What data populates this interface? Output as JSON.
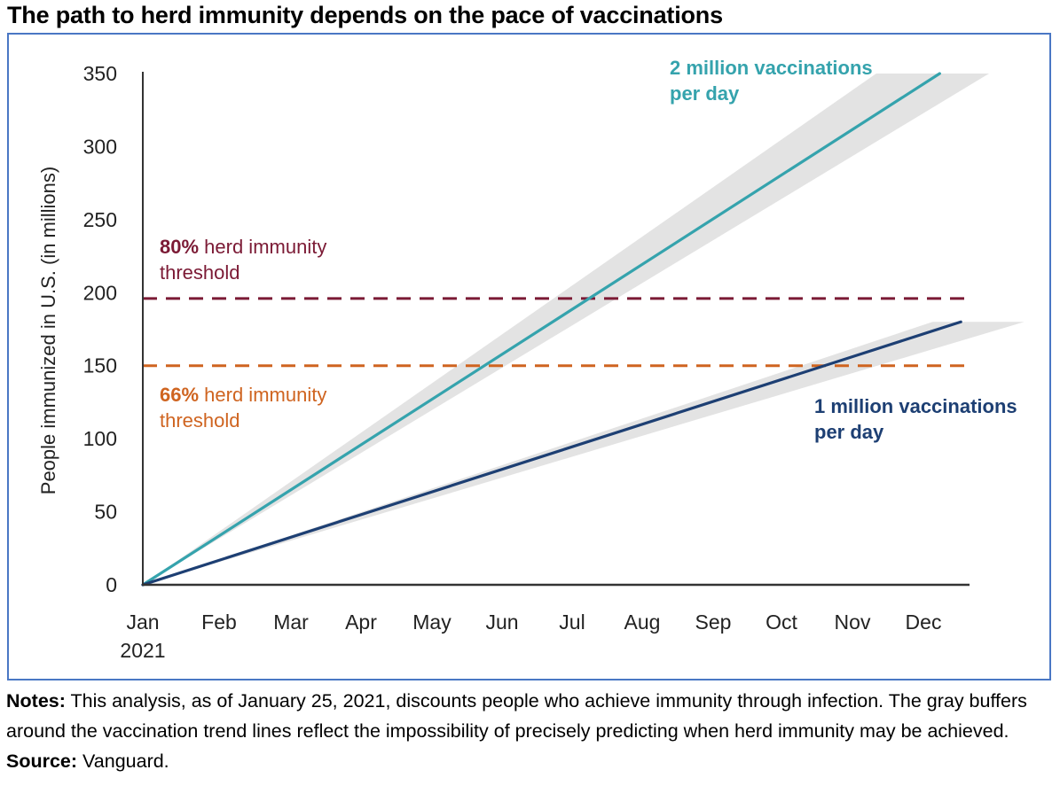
{
  "title": "The path to herd immunity depends on the pace of vaccinations",
  "notes": {
    "notes_label": "Notes:",
    "notes_text": " This analysis, as of January 25, 2021, discounts people who achieve immunity through infection. The gray buffers around the vaccination trend lines reflect the impossibility of precisely predicting when herd immunity may be achieved.",
    "source_label": "Source:",
    "source_text": " Vanguard."
  },
  "colors": {
    "frame": "#4a77c4",
    "two_million": "#35a3ad",
    "one_million": "#1d3f73",
    "threshold_80": "#7b1a35",
    "threshold_66": "#cf6420",
    "buffer": "#e3e3e3",
    "axis": "#333333"
  },
  "chart_data": {
    "type": "line",
    "title": "The path to herd immunity depends on the pace of vaccinations",
    "xlabel": "",
    "ylabel": "People immunized in U.S. (in millions)",
    "ylim": [
      0,
      350
    ],
    "yticks": [
      0,
      50,
      100,
      150,
      200,
      250,
      300,
      350
    ],
    "x_tick_labels": [
      "Jan",
      "Feb",
      "Mar",
      "Apr",
      "May",
      "Jun",
      "Jul",
      "Aug",
      "Sep",
      "Oct",
      "Nov",
      "Dec"
    ],
    "x_year_label": "2021",
    "xlim_months": [
      0,
      11.65
    ],
    "grid": false,
    "series": [
      {
        "name": "2 million vaccinations per day",
        "label_lines": [
          "2 million vaccinations",
          "per day"
        ],
        "x_months": [
          0,
          11.3
        ],
        "values": [
          0,
          350
        ],
        "buffer_end_range": [
          330,
          350
        ],
        "buffer_end_x_months": [
          10.4,
          12.0
        ]
      },
      {
        "name": "1 million vaccinations per day",
        "label_lines": [
          "1 million vaccinations",
          "per day"
        ],
        "x_months": [
          0,
          11.6
        ],
        "values": [
          0,
          180
        ],
        "buffer_end_range": [
          170,
          180
        ],
        "buffer_end_x_months": [
          11.2,
          12.5
        ]
      }
    ],
    "thresholds": [
      {
        "name": "80% herd immunity threshold",
        "value": 196,
        "bold_part": "80%",
        "rest_line1": " herd immunity",
        "line2": "threshold"
      },
      {
        "name": "66% herd immunity threshold",
        "value": 150,
        "bold_part": "66%",
        "rest_line1": " herd immunity",
        "line2": "threshold"
      }
    ]
  }
}
